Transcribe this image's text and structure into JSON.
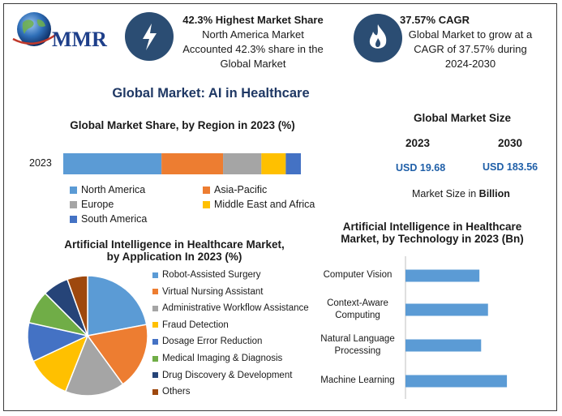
{
  "brand": {
    "logo_text": "MMR"
  },
  "stats": {
    "share": {
      "headline": "42.3% Highest Market Share",
      "line1": "North America Market",
      "line2": "Accounted 42.3% share in the",
      "line3": "Global Market"
    },
    "cagr": {
      "headline": "37.57% CAGR",
      "line1": "Global Market to grow at a",
      "line2": "CAGR of 37.57% during",
      "line3": "2024-2030"
    }
  },
  "main_title": "Global Market: AI in Healthcare",
  "market_size": {
    "title": "Global Market Size",
    "year1": "2023",
    "year2": "2030",
    "value1": "USD 19.68",
    "value2": "USD 183.56",
    "note_prefix": "Market Size in ",
    "note_unit": "Billion"
  },
  "colors": {
    "accent_blue": "#5b9bd5",
    "orange": "#ed7d31",
    "gray": "#a5a5a5",
    "yellow": "#ffc000",
    "dark_blue": "#4472c4",
    "green": "#70ad47",
    "navy": "#264478",
    "brown": "#9e480e",
    "value_blue": "#1f5fa8",
    "icon_bg": "#2b4d73"
  },
  "icons": {
    "share_icon": "lightning-bolt-icon",
    "cagr_icon": "flame-icon",
    "logo_icon": "globe-icon"
  },
  "chart_data": [
    {
      "type": "bar",
      "orientation": "horizontal-stacked",
      "title": "Global Market Share, by Region in 2023 (%)",
      "categories": [
        "2023"
      ],
      "series": [
        {
          "name": "North America",
          "values": [
            42.3
          ],
          "color": "#5b9bd5"
        },
        {
          "name": "Asia-Pacific",
          "values": [
            26.5
          ],
          "color": "#ed7d31"
        },
        {
          "name": "Europe",
          "values": [
            16.5
          ],
          "color": "#a5a5a5"
        },
        {
          "name": "Middle East and Africa",
          "values": [
            10.5
          ],
          "color": "#ffc000"
        },
        {
          "name": "South America",
          "values": [
            6.5
          ],
          "color": "#4472c4"
        }
      ],
      "legend": "bottom"
    },
    {
      "type": "pie",
      "title_line1": "Artificial Intelligence in Healthcare Market,",
      "title_line2": "by Application In 2023 (%)",
      "slices": [
        {
          "name": "Robot-Assisted Surgery",
          "value": 22,
          "color": "#5b9bd5"
        },
        {
          "name": "Virtual Nursing Assistant",
          "value": 18,
          "color": "#ed7d31"
        },
        {
          "name": "Administrative Workflow Assistance",
          "value": 16,
          "color": "#a5a5a5"
        },
        {
          "name": "Fraud Detection",
          "value": 12,
          "color": "#ffc000"
        },
        {
          "name": "Dosage Error Reduction",
          "value": 10.5,
          "color": "#4472c4"
        },
        {
          "name": "Medical Imaging & Diagnosis",
          "value": 9,
          "color": "#70ad47"
        },
        {
          "name": "Drug Discovery & Development",
          "value": 7,
          "color": "#264478"
        },
        {
          "name": "Others",
          "value": 5.5,
          "color": "#9e480e"
        }
      ],
      "legend": "right"
    },
    {
      "type": "bar",
      "orientation": "horizontal",
      "title_line1": "Artificial Intelligence in Healthcare",
      "title_line2": "Market, by Technology in 2023 (Bn)",
      "categories": [
        {
          "line1": "Computer Vision",
          "line2": ""
        },
        {
          "line1": "Context-Aware",
          "line2": "Computing"
        },
        {
          "line1": "Natural Language",
          "line2": "Processing"
        },
        {
          "line1": "Machine Learning",
          "line2": ""
        }
      ],
      "values": [
        4.3,
        4.8,
        4.4,
        5.9
      ],
      "xlim": [
        0,
        8
      ],
      "color": "#5b9bd5"
    }
  ]
}
